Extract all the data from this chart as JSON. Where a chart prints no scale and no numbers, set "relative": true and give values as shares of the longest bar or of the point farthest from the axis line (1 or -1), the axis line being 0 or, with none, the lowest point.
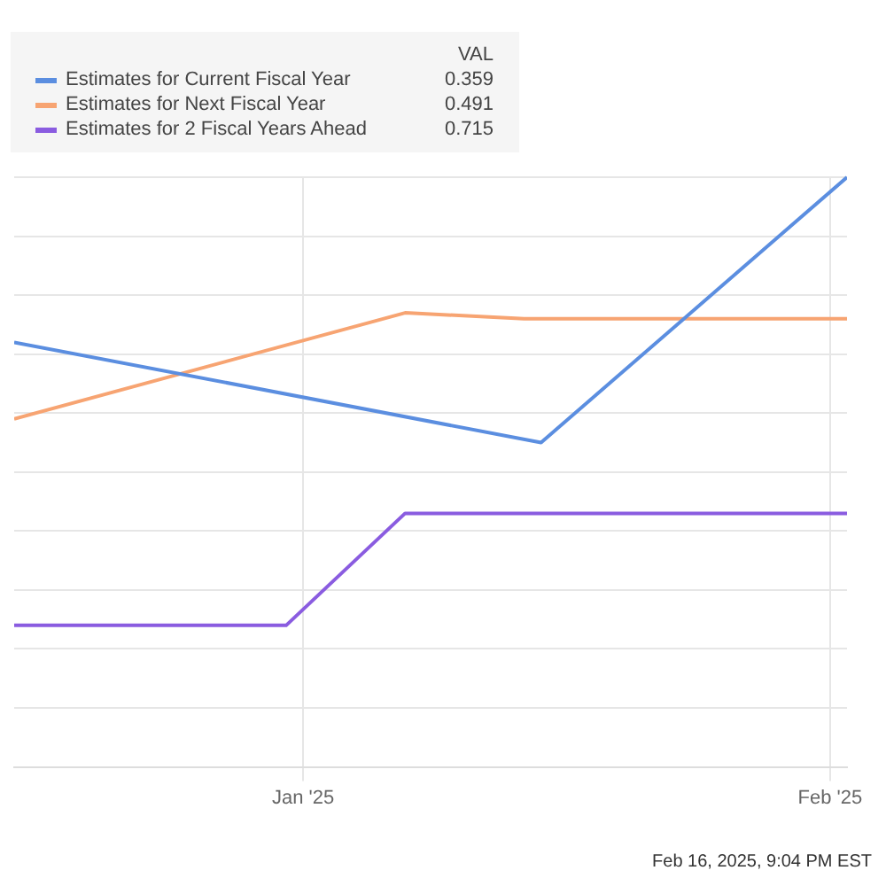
{
  "chart_data": {
    "type": "line",
    "relative": true,
    "legend": "top left",
    "legend_title": "VAL",
    "grid": true,
    "marker": "none",
    "line_style": "solid",
    "xlim": [
      "2024-12-15",
      "2025-02-02"
    ],
    "xticks": [
      {
        "value": "2025-01-01",
        "label": "Jan '25"
      },
      {
        "value": "2025-02-01",
        "label": "Feb '25"
      }
    ],
    "series": [
      {
        "name": "Estimates for Current Fiscal Year",
        "color": "#5b8ee0",
        "x": [
          "2024-12-15",
          "2025-01-15",
          "2025-02-02"
        ],
        "values": [
          0.72,
          0.55,
          1
        ]
      },
      {
        "name": "Estimates for Next Fiscal Year",
        "color": "#f7a472",
        "x": [
          "2024-12-15",
          "2025-01-07",
          "2025-01-14",
          "2025-02-02"
        ],
        "values": [
          0.59,
          0.77,
          0.76,
          0.76
        ]
      },
      {
        "name": "Estimates for 2 Fiscal Years Ahead",
        "color": "#8a5ce0",
        "x": [
          "2024-12-15",
          "2024-12-31",
          "2025-01-07",
          "2025-02-02"
        ],
        "values": [
          0.24,
          0.24,
          0.43,
          0.43
        ]
      }
    ],
    "annotations": [
      "0.359",
      "0.491",
      "0.715",
      "Feb 16, 2025, 9:04 PM EST"
    ]
  }
}
